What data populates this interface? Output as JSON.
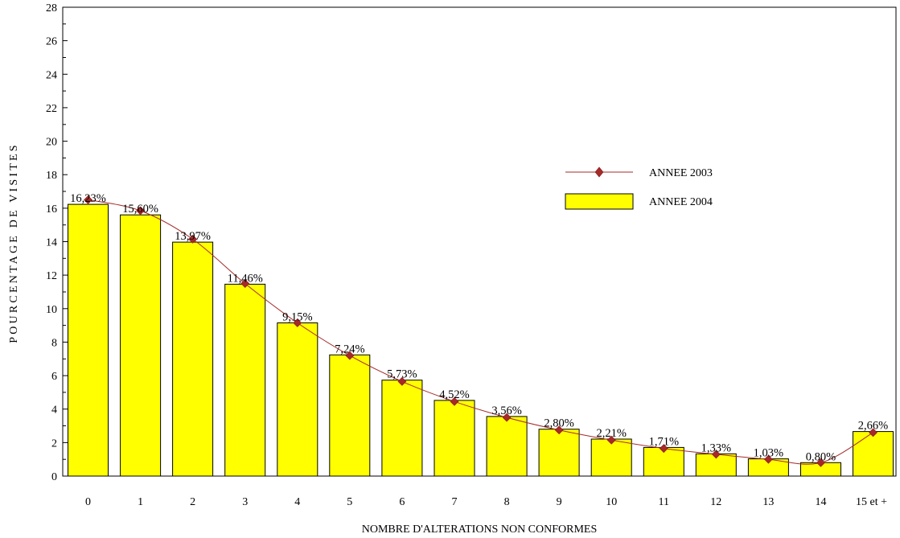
{
  "chart_data": {
    "type": "bar",
    "title": "",
    "xlabel": "NOMBRE D'ALTERATIONS NON CONFORMES",
    "ylabel": "POURCENTAGE DE VISITES",
    "ylim": [
      0,
      28
    ],
    "y_major_ticks": [
      0,
      2,
      4,
      6,
      8,
      10,
      12,
      14,
      16,
      18,
      20,
      22,
      24,
      26,
      28
    ],
    "y_minor_step": 1,
    "grid": false,
    "legend_position": "right",
    "categories": [
      "0",
      "1",
      "2",
      "3",
      "4",
      "5",
      "6",
      "7",
      "8",
      "9",
      "10",
      "11",
      "12",
      "13",
      "14",
      "15 et +"
    ],
    "series": [
      {
        "name": "ANNEE 2004",
        "type": "bar",
        "color": "#ffff00",
        "values": [
          16.23,
          15.6,
          13.97,
          11.46,
          9.15,
          7.24,
          5.73,
          4.52,
          3.56,
          2.8,
          2.21,
          1.71,
          1.33,
          1.03,
          0.8,
          2.66
        ],
        "labels": [
          "16,23%",
          "15,60%",
          "13,97%",
          "11,46%",
          "9,15%",
          "7,24%",
          "5,73%",
          "4,52%",
          "3,56%",
          "2,80%",
          "2,21%",
          "1,71%",
          "1,33%",
          "1,03%",
          "0,80%",
          "2,66%"
        ]
      },
      {
        "name": "ANNEE 2003",
        "type": "line",
        "color": "#a52a2a",
        "marker": "diamond",
        "values": [
          16.5,
          15.85,
          14.15,
          11.5,
          9.15,
          7.2,
          5.65,
          4.45,
          3.5,
          2.75,
          2.15,
          1.65,
          1.3,
          1.0,
          0.8,
          2.6
        ]
      }
    ]
  }
}
